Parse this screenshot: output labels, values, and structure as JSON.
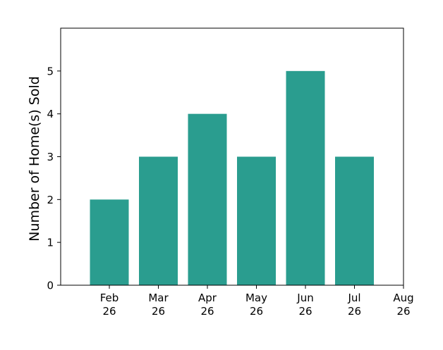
{
  "chart_data": {
    "type": "bar",
    "categories": [
      [
        "Feb",
        "26"
      ],
      [
        "Mar",
        "26"
      ],
      [
        "Apr",
        "26"
      ],
      [
        "May",
        "26"
      ],
      [
        "Jun",
        "26"
      ],
      [
        "Jul",
        "26"
      ]
    ],
    "values": [
      2,
      3,
      4,
      3,
      5,
      3
    ],
    "x_ticks": [
      [
        "Feb",
        "26"
      ],
      [
        "Mar",
        "26"
      ],
      [
        "Apr",
        "26"
      ],
      [
        "May",
        "26"
      ],
      [
        "Jun",
        "26"
      ],
      [
        "Jul",
        "26"
      ],
      [
        "Aug",
        "26"
      ]
    ],
    "title": "",
    "xlabel": "",
    "ylabel": "Number of Home(s) Sold",
    "ylim": [
      0,
      6
    ],
    "y_ticks": [
      0,
      1,
      2,
      3,
      4,
      5
    ],
    "grid": false,
    "colors": {
      "bar": "#2a9d8f",
      "axis": "#000000"
    }
  }
}
